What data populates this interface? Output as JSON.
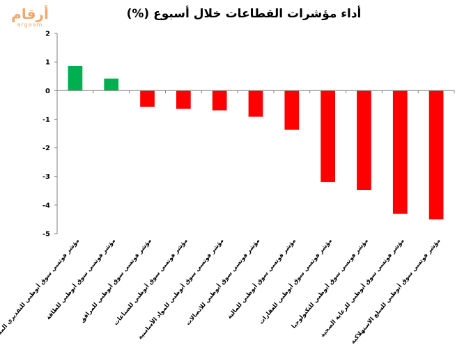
{
  "logo": {
    "main": "أرقام",
    "sub": "argaam",
    "color": "#f2a86a"
  },
  "chart_data": {
    "type": "bar",
    "title": "أداء مؤشرات القطاعات خلال أسبوع (%)",
    "xlabel": "",
    "ylabel": "",
    "ylim": [
      -5,
      2
    ],
    "yticks": [
      2,
      1,
      0,
      -1,
      -2,
      -3,
      -4,
      -5
    ],
    "grid": false,
    "legend": "none",
    "categories": [
      "مؤشر فوتسي سوق أبوظبي للتقديري المستهلك",
      "مؤشر فوتسي سوق أبوظبي للطاقة",
      "مؤشر فوتسي سوق أبوظبي للمرافق",
      "مؤشر فوتسي سوق أبوظبي للصناعات",
      "مؤشر فوتسي سوق أبوظبي للمواد الأساسية",
      "مؤشر فوتسي سوق أبوظبي للاتصالات",
      "مؤشر فوتسي سوق أبوظبي للمالية",
      "مؤشر فوتسي سوق أبوظبي للعقارات",
      "مؤشر فوتسي سوق أبوظبي للتكنولوجيا",
      "مؤشر فوتسي سوق أبوظبي للرعاية الصحية",
      "مؤشر فوتسي سوق أبوظبي للسلع الاستهلاكية"
    ],
    "values": [
      0.86,
      0.42,
      -0.57,
      -0.64,
      -0.69,
      -0.91,
      -1.37,
      -3.2,
      -3.47,
      -4.31,
      -4.5
    ],
    "colors": {
      "positive": "#00b050",
      "negative": "#ff0000",
      "axis": "#7f7f7f"
    }
  }
}
